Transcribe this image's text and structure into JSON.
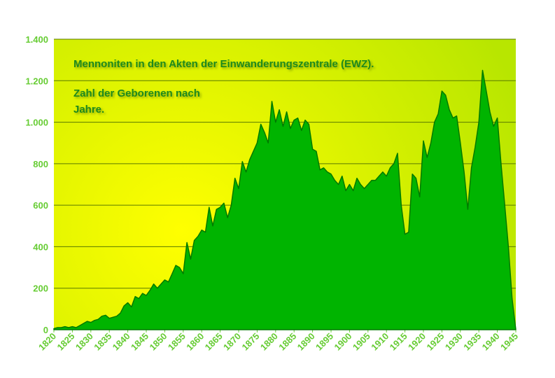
{
  "chart_data": {
    "type": "area",
    "annotations": [
      "Mennoniten in den Akten der Einwanderungszentrale (EWZ).",
      "Zahl der Geborenen nach",
      "Jahre."
    ],
    "x": [
      1820,
      1821,
      1822,
      1823,
      1824,
      1825,
      1826,
      1827,
      1828,
      1829,
      1830,
      1831,
      1832,
      1833,
      1834,
      1835,
      1836,
      1837,
      1838,
      1839,
      1840,
      1841,
      1842,
      1843,
      1844,
      1845,
      1846,
      1847,
      1848,
      1849,
      1850,
      1851,
      1852,
      1853,
      1854,
      1855,
      1856,
      1857,
      1858,
      1859,
      1860,
      1861,
      1862,
      1863,
      1864,
      1865,
      1866,
      1867,
      1868,
      1869,
      1870,
      1871,
      1872,
      1873,
      1874,
      1875,
      1876,
      1877,
      1878,
      1879,
      1880,
      1881,
      1882,
      1883,
      1884,
      1885,
      1886,
      1887,
      1888,
      1889,
      1890,
      1891,
      1892,
      1893,
      1894,
      1895,
      1896,
      1897,
      1898,
      1899,
      1900,
      1901,
      1902,
      1903,
      1904,
      1905,
      1906,
      1907,
      1908,
      1909,
      1910,
      1911,
      1912,
      1913,
      1914,
      1915,
      1916,
      1917,
      1918,
      1919,
      1920,
      1921,
      1922,
      1923,
      1924,
      1925,
      1926,
      1927,
      1928,
      1929,
      1930,
      1931,
      1932,
      1933,
      1934,
      1935,
      1936,
      1937,
      1938,
      1939,
      1940,
      1941,
      1942,
      1943,
      1944,
      1945
    ],
    "values": [
      5,
      10,
      10,
      15,
      10,
      15,
      10,
      20,
      30,
      40,
      35,
      45,
      50,
      65,
      70,
      55,
      60,
      65,
      80,
      115,
      130,
      110,
      160,
      150,
      175,
      165,
      190,
      220,
      200,
      220,
      240,
      230,
      270,
      310,
      300,
      270,
      420,
      340,
      430,
      450,
      480,
      470,
      590,
      500,
      580,
      590,
      610,
      540,
      600,
      730,
      680,
      810,
      760,
      820,
      860,
      900,
      990,
      950,
      900,
      1100,
      1000,
      1060,
      980,
      1050,
      970,
      1010,
      1020,
      960,
      1010,
      990,
      870,
      860,
      770,
      780,
      760,
      750,
      720,
      700,
      740,
      670,
      700,
      670,
      730,
      700,
      680,
      700,
      720,
      720,
      740,
      760,
      740,
      780,
      800,
      850,
      600,
      460,
      470,
      750,
      730,
      640,
      910,
      830,
      900,
      1000,
      1040,
      1150,
      1130,
      1060,
      1020,
      1030,
      900,
      760,
      580,
      780,
      880,
      1000,
      1250,
      1150,
      1050,
      980,
      1020,
      800,
      600,
      400,
      150,
      0
    ],
    "color": "#00b400",
    "xlim": [
      1820,
      1945
    ],
    "xticks": [
      1820,
      1825,
      1830,
      1835,
      1840,
      1845,
      1850,
      1855,
      1860,
      1865,
      1870,
      1875,
      1880,
      1885,
      1890,
      1895,
      1900,
      1905,
      1910,
      1915,
      1920,
      1925,
      1930,
      1935,
      1940,
      1945
    ],
    "ylim": [
      0,
      1400
    ],
    "yticks": [
      0,
      200,
      400,
      600,
      800,
      {
        "value": 1000,
        "label": "1.000"
      },
      {
        "value": 1200,
        "label": "1.200"
      },
      {
        "value": 1400,
        "label": "1.400"
      }
    ],
    "grid": true
  }
}
